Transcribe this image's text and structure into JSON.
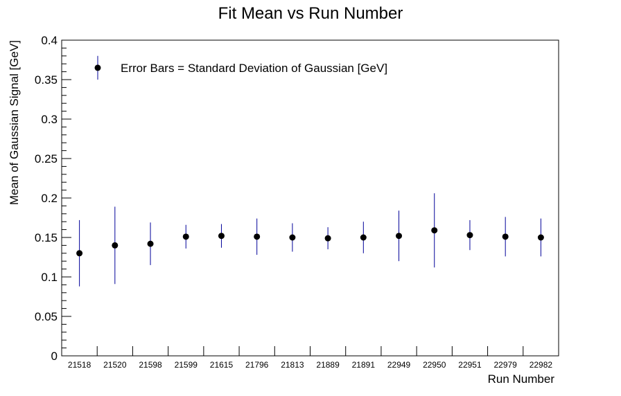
{
  "chart_data": {
    "type": "scatter",
    "title": "Fit Mean vs Run Number",
    "xlabel": "Run Number",
    "ylabel": "Mean of Gaussian Signal [GeV]",
    "ylim": [
      0,
      0.4
    ],
    "yticks": [
      "0",
      "0.05",
      "0.1",
      "0.15",
      "0.2",
      "0.25",
      "0.3",
      "0.35",
      "0.4"
    ],
    "ytick_values": [
      0,
      0.05,
      0.1,
      0.15,
      0.2,
      0.25,
      0.3,
      0.35,
      0.4
    ],
    "categories": [
      "21518",
      "21520",
      "21598",
      "21599",
      "21615",
      "21796",
      "21813",
      "21889",
      "21891",
      "22949",
      "22950",
      "22951",
      "22979",
      "22982"
    ],
    "series": [
      {
        "values": [
          0.13,
          0.14,
          0.142,
          0.151,
          0.152,
          0.151,
          0.15,
          0.149,
          0.15,
          0.152,
          0.159,
          0.153,
          0.151,
          0.15
        ],
        "errors": [
          0.042,
          0.049,
          0.027,
          0.015,
          0.015,
          0.023,
          0.018,
          0.014,
          0.02,
          0.032,
          0.047,
          0.019,
          0.025,
          0.024
        ],
        "color": "#000099",
        "marker_color": "#000000"
      }
    ],
    "legend": {
      "text": "Error Bars = Standard Deviation of Gaussian [GeV]",
      "position": "top-left",
      "sample_value": 0.365,
      "sample_error": 0.015
    },
    "grid": false
  }
}
